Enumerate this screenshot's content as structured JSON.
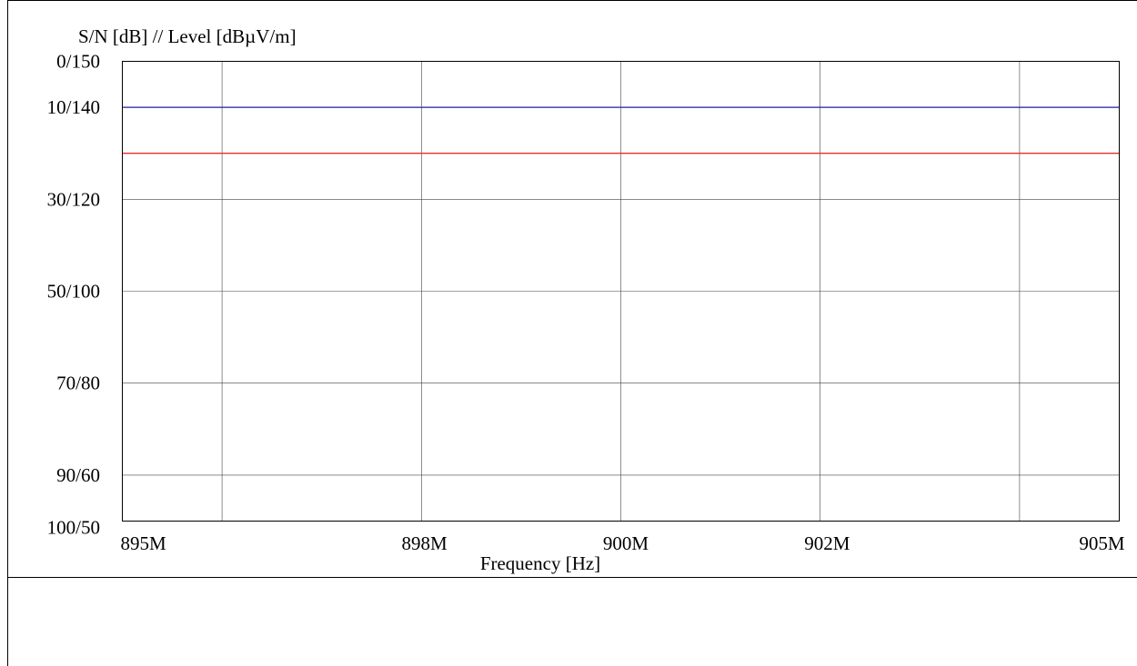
{
  "chart_data": {
    "type": "line",
    "title": "S/N [dB] // Level [dBµV/m]",
    "xlabel": "Frequency [Hz]",
    "ylabel": "S/N [dB] // Level [dBµV/m]",
    "x_tick_labels": [
      "895M",
      "898M",
      "900M",
      "902M",
      "905M"
    ],
    "y_tick_labels": [
      "0/150",
      "10/140",
      "30/120",
      "50/100",
      "70/80",
      "90/60",
      "100/50"
    ],
    "y_tick_values": [
      0,
      10,
      30,
      50,
      70,
      90,
      100
    ],
    "ylim": [
      0,
      100
    ],
    "x_grid_fractions": [
      0.1,
      0.3,
      0.5,
      0.7,
      0.9
    ],
    "grid": true,
    "series": [
      {
        "color": "#1f1fa0",
        "values": [
          10,
          10
        ]
      },
      {
        "color": "#e03030",
        "values": [
          20,
          20
        ]
      }
    ]
  }
}
